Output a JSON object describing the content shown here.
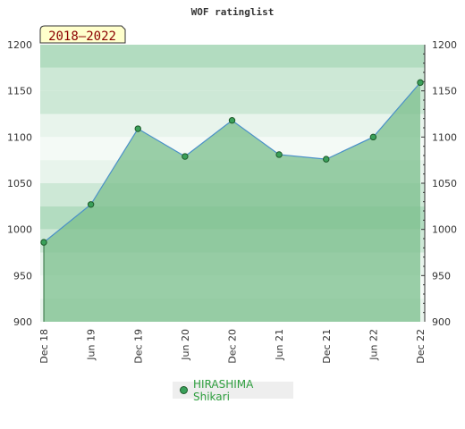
{
  "chart_data": {
    "type": "area",
    "title": "WOF ratinglist",
    "badge": "2018–2022",
    "x": [
      "Dec 18",
      "Jun 19",
      "Dec 19",
      "Jun 20",
      "Dec 20",
      "Jun 21",
      "Dec 21",
      "Jun 22",
      "Dec 22"
    ],
    "series": [
      {
        "name": "HIRASHIMA Shikari",
        "values": [
          986,
          1027,
          1109,
          1079,
          1118,
          1081,
          1076,
          1100,
          1159
        ]
      }
    ],
    "ylim": [
      900,
      1200
    ],
    "yticks": [
      900,
      950,
      1000,
      1050,
      1100,
      1150,
      1200
    ],
    "grid": true,
    "legend_position": "bottom",
    "colors": {
      "line": "#4a90c8",
      "fill": "#7bbf8c",
      "marker": "#3aa05a",
      "marker_edge": "#1e5a2a",
      "badge_bg": "#ffffcc"
    }
  }
}
